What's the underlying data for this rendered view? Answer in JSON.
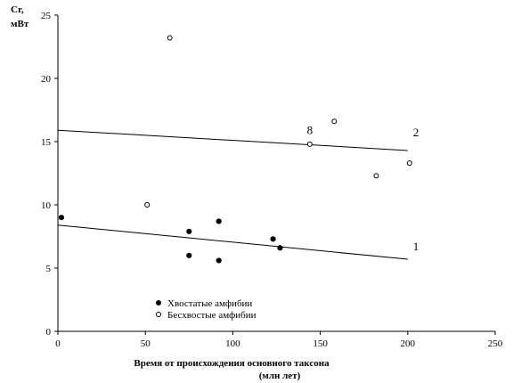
{
  "chart_data": {
    "type": "scatter",
    "ylabel_lines": [
      "Cr,",
      "мВт"
    ],
    "xlabel": "Время от происхождения основного таксона",
    "xlabel_units": "(млн лет)",
    "xlim": [
      0,
      250
    ],
    "ylim": [
      0,
      25
    ],
    "x_ticks": [
      "0",
      "50",
      "100",
      "150",
      "200",
      "250"
    ],
    "y_ticks": [
      "0",
      "5",
      "10",
      "15",
      "20",
      "25"
    ],
    "grid": false,
    "legend_position": "bottom-left",
    "series": [
      {
        "name": "Хвостатые амфибии",
        "marker": "filled-circle",
        "color": "#000000",
        "x": [
          2,
          75,
          75,
          92,
          92,
          123,
          127
        ],
        "y": [
          9.0,
          7.9,
          6.0,
          8.7,
          5.6,
          7.3,
          6.6
        ]
      },
      {
        "name": "Бесхвостые амфибии",
        "marker": "open-circle",
        "color": "#000000",
        "x": [
          51,
          64,
          144,
          158,
          182,
          201
        ],
        "y": [
          10.0,
          23.2,
          14.8,
          16.6,
          12.3,
          13.3
        ]
      }
    ],
    "trend_lines": [
      {
        "label": "1",
        "x": [
          0,
          200
        ],
        "y": [
          8.4,
          5.7
        ]
      },
      {
        "label": "2",
        "x": [
          0,
          200
        ],
        "y": [
          15.9,
          14.3
        ]
      }
    ],
    "annotations": [
      {
        "text": "8",
        "x": 144,
        "y": 15.6
      }
    ]
  }
}
